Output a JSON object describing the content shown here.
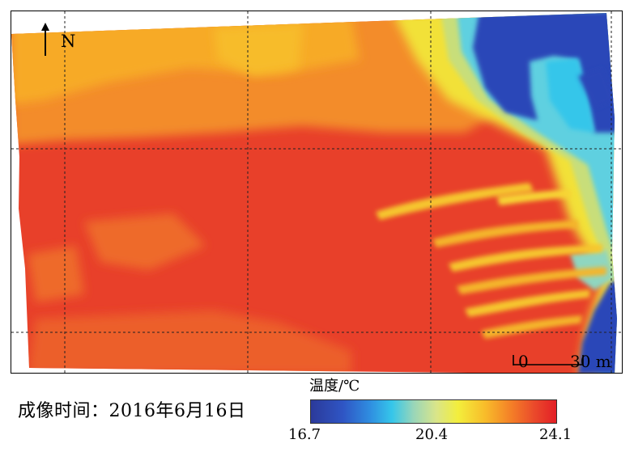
{
  "map": {
    "north_label": "N",
    "scale": {
      "start": "0",
      "end": "30 m"
    },
    "gridlines": "dashed",
    "colors": {
      "water_cold": "#2c47b8",
      "water_edge": "#35c6ea",
      "transition": "#f3ee3c",
      "land_warm": "#f59a2b",
      "land_hot": "#e6312a"
    }
  },
  "legend": {
    "title": "温度/℃",
    "min": "16.7",
    "mid": "20.4",
    "max": "24.1"
  },
  "caption": {
    "capture_time": "成像时间：2016年6月16日"
  }
}
